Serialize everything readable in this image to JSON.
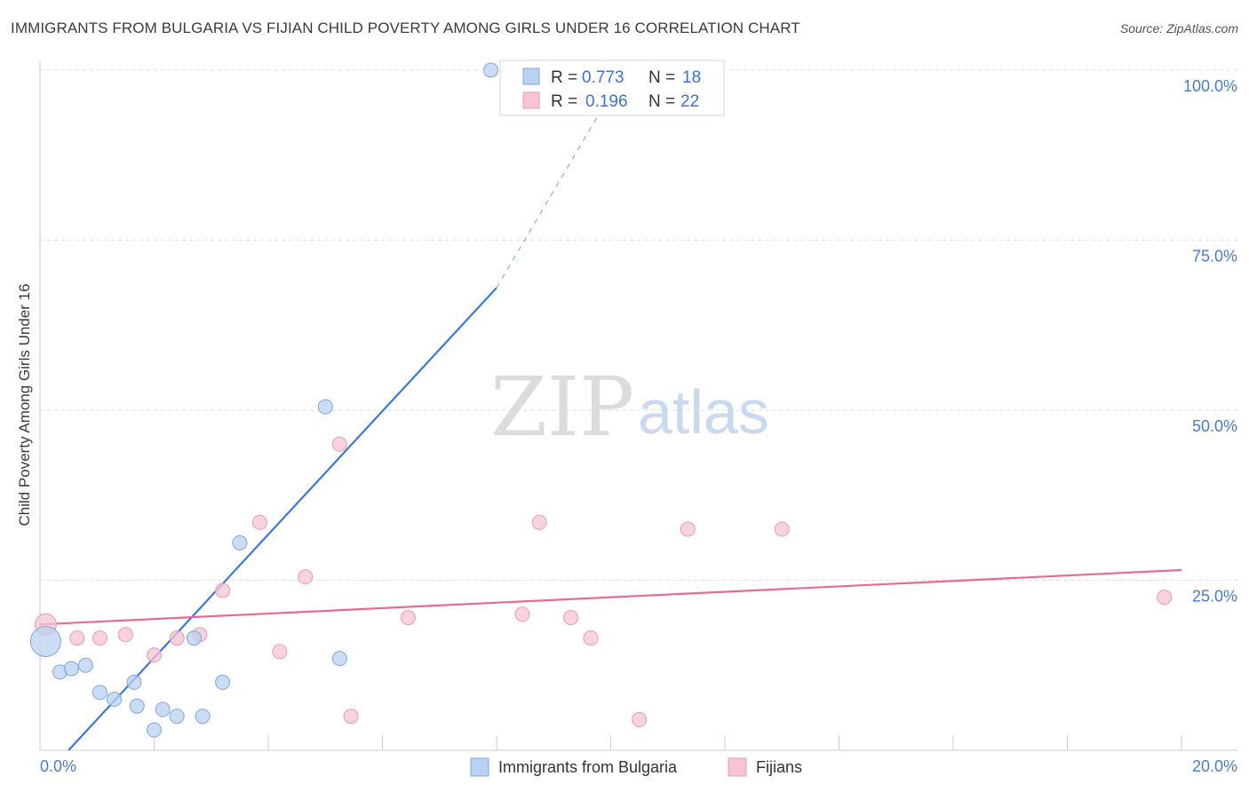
{
  "title": "IMMIGRANTS FROM BULGARIA VS FIJIAN CHILD POVERTY AMONG GIRLS UNDER 16 CORRELATION CHART",
  "source": "Source: ZipAtlas.com",
  "watermark": {
    "zip": "ZIP",
    "atlas": "atlas"
  },
  "colors": {
    "blue": "#3b78d8",
    "blue_fill": "#b9d2f2",
    "pink": "#e66a93",
    "pink_fill": "#f6c4d4",
    "tick_text": "#4a7cc5",
    "grid": "#dddddd"
  },
  "legend": {
    "r_label": "R =",
    "n_label": "N =",
    "rows": [
      {
        "r": "0.773",
        "n": "18",
        "color": "blue"
      },
      {
        "r": "0.196",
        "n": "22",
        "color": "pink"
      }
    ]
  },
  "chart_data": {
    "type": "scatter",
    "xlabel": "",
    "ylabel": "Child Poverty Among Girls Under 16",
    "xlim": [
      0,
      20
    ],
    "ylim": [
      0,
      100
    ],
    "x_tick_labels": [
      "0.0%",
      "20.0%"
    ],
    "y_ticks": [
      25,
      50,
      75,
      100
    ],
    "y_tick_labels": [
      "25.0%",
      "50.0%",
      "75.0%",
      "100.0%"
    ],
    "grid": true,
    "legend_position": "top-center",
    "series": [
      {
        "name": "Immigrants from Bulgaria",
        "color": "blue",
        "points": [
          [
            0.1,
            16.0
          ],
          [
            0.35,
            11.5
          ],
          [
            0.55,
            12.0
          ],
          [
            0.8,
            12.5
          ],
          [
            1.05,
            8.5
          ],
          [
            1.3,
            7.5
          ],
          [
            1.65,
            10.0
          ],
          [
            1.7,
            6.5
          ],
          [
            2.0,
            3.0
          ],
          [
            2.15,
            6.0
          ],
          [
            2.4,
            5.0
          ],
          [
            2.7,
            16.5
          ],
          [
            2.85,
            5.0
          ],
          [
            3.2,
            10.0
          ],
          [
            3.5,
            30.5
          ],
          [
            5.0,
            50.5
          ],
          [
            5.25,
            13.5
          ],
          [
            7.9,
            100.0
          ]
        ],
        "trend": {
          "x": [
            0.5,
            8.0
          ],
          "y": [
            0.0,
            68.0
          ],
          "dashed_to": [
            10.0,
            96.5
          ]
        }
      },
      {
        "name": "Fijians",
        "color": "pink",
        "points": [
          [
            0.1,
            18.5
          ],
          [
            0.65,
            16.5
          ],
          [
            1.05,
            16.5
          ],
          [
            1.5,
            17.0
          ],
          [
            2.0,
            14.0
          ],
          [
            2.4,
            16.5
          ],
          [
            2.8,
            17.0
          ],
          [
            3.2,
            23.5
          ],
          [
            3.85,
            33.5
          ],
          [
            4.2,
            14.5
          ],
          [
            4.65,
            25.5
          ],
          [
            5.25,
            45.0
          ],
          [
            5.45,
            5.0
          ],
          [
            6.45,
            19.5
          ],
          [
            8.45,
            20.0
          ],
          [
            8.75,
            33.5
          ],
          [
            9.3,
            19.5
          ],
          [
            9.65,
            16.5
          ],
          [
            10.5,
            4.5
          ],
          [
            11.35,
            32.5
          ],
          [
            13.0,
            32.5
          ],
          [
            19.7,
            22.5
          ]
        ],
        "trend": {
          "x": [
            0.0,
            20.0
          ],
          "y": [
            18.5,
            26.5
          ]
        }
      }
    ]
  }
}
